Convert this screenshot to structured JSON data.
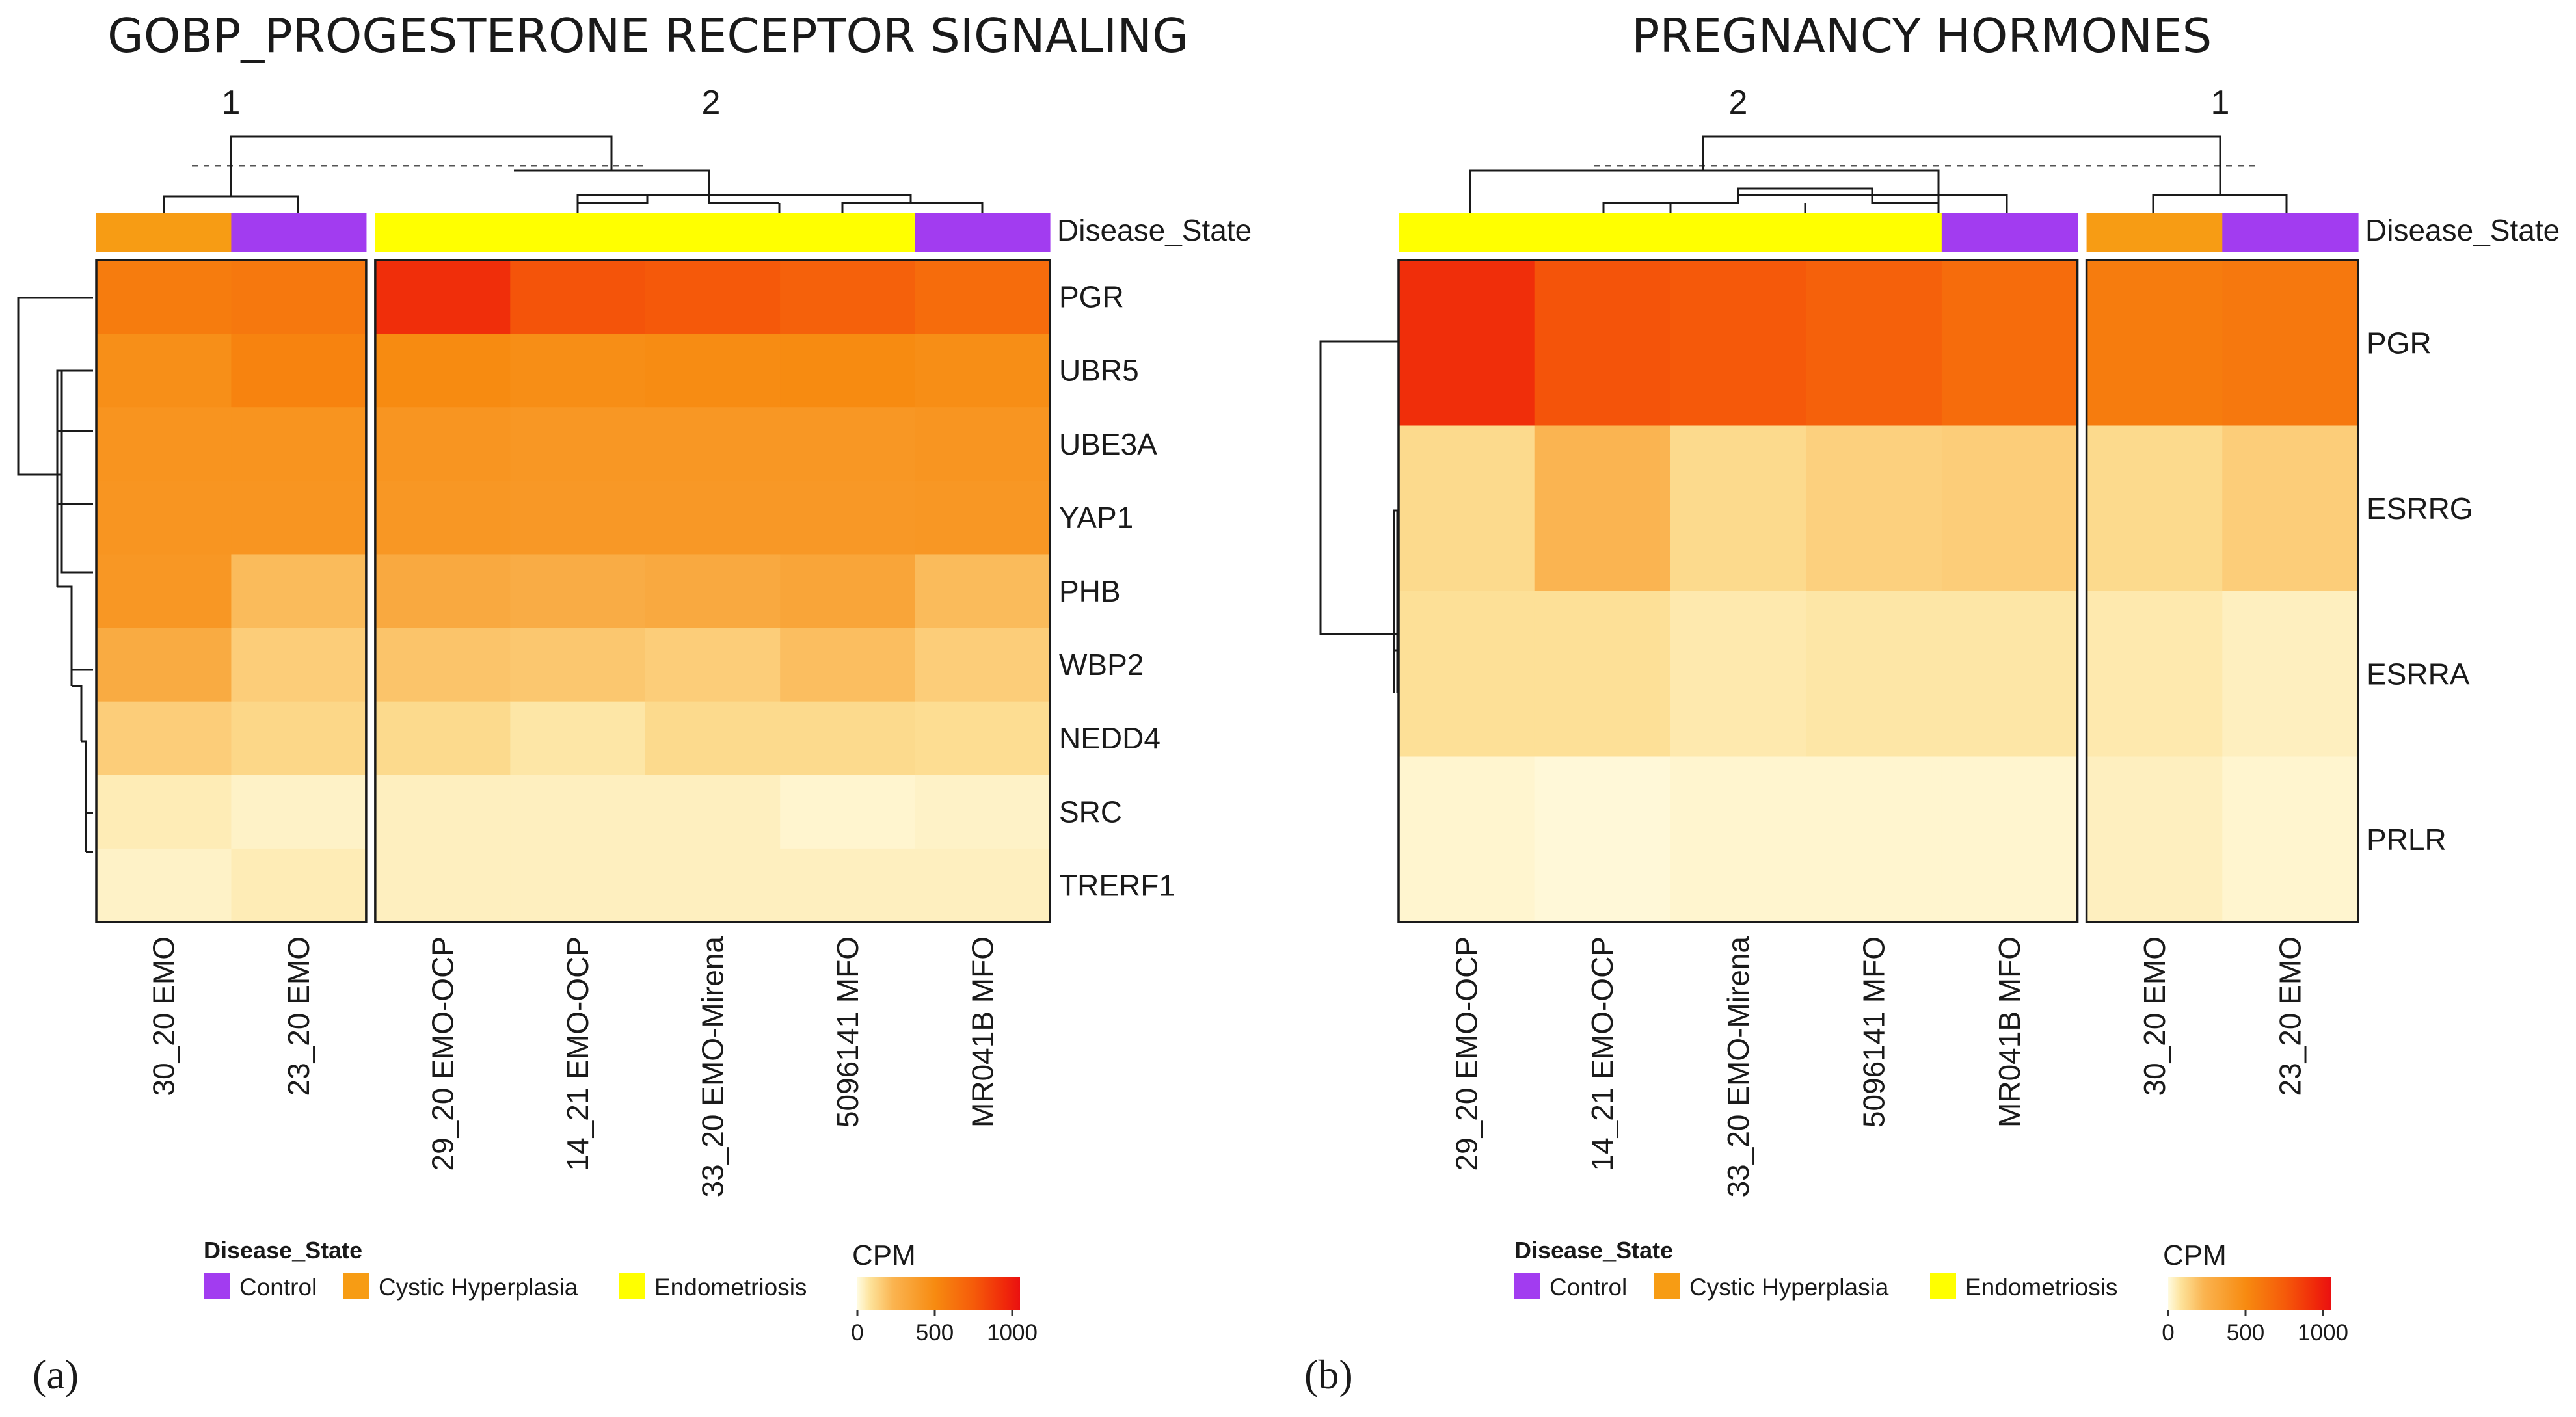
{
  "colors": {
    "Control": "#a23cf0",
    "Cystic Hyperplasia": "#f79c14",
    "Endometriosis": "#ffff00",
    "cpm_scale": [
      "#fffbe0",
      "#fde29a",
      "#fab450",
      "#f78a10",
      "#f55a0a",
      "#f02a0a",
      "#ea1010"
    ]
  },
  "chart_data": [
    {
      "panel_label": "(a)",
      "title": "GOBP_PROGESTERONE RECEPTOR SIGNALING",
      "type": "heatmap",
      "annotation_label": "Disease_State",
      "column_clusters": [
        {
          "label": "1",
          "columns": [
            "30_20 EMO",
            "23_20 EMO"
          ]
        },
        {
          "label": "2",
          "columns": [
            "29_20 EMO-OCP",
            "14_21 EMO-OCP",
            "33_20 EMO-Mirena",
            "5096141 MFO",
            "MR041B MFO"
          ]
        }
      ],
      "columns": [
        "30_20 EMO",
        "23_20 EMO",
        "29_20 EMO-OCP",
        "14_21 EMO-OCP",
        "33_20 EMO-Mirena",
        "5096141 MFO",
        "MR041B MFO"
      ],
      "column_disease_state": [
        "Cystic Hyperplasia",
        "Control",
        "Endometriosis",
        "Endometriosis",
        "Endometriosis",
        "Endometriosis",
        "Control"
      ],
      "rows": [
        "PGR",
        "UBR5",
        "UBE3A",
        "YAP1",
        "PHB",
        "WBP2",
        "NEDD4",
        "SRC",
        "TRERF1"
      ],
      "values": [
        [
          580,
          600,
          930,
          780,
          760,
          720,
          660
        ],
        [
          470,
          540,
          500,
          480,
          490,
          500,
          480
        ],
        [
          440,
          440,
          430,
          420,
          420,
          420,
          430
        ],
        [
          430,
          430,
          420,
          410,
          410,
          410,
          420
        ],
        [
          420,
          210,
          300,
          280,
          300,
          330,
          210
        ],
        [
          290,
          150,
          180,
          170,
          150,
          200,
          150
        ],
        [
          150,
          120,
          110,
          70,
          110,
          110,
          100
        ],
        [
          50,
          30,
          40,
          40,
          40,
          20,
          30
        ],
        [
          30,
          50,
          40,
          40,
          40,
          40,
          40
        ]
      ]
    },
    {
      "panel_label": "(b)",
      "title": "PREGNANCY HORMONES",
      "type": "heatmap",
      "annotation_label": "Disease_State",
      "column_clusters": [
        {
          "label": "2",
          "columns": [
            "29_20 EMO-OCP",
            "14_21 EMO-OCP",
            "33_20 EMO-Mirena",
            "5096141 MFO",
            "MR041B MFO"
          ]
        },
        {
          "label": "1",
          "columns": [
            "30_20 EMO",
            "23_20 EMO"
          ]
        }
      ],
      "columns": [
        "29_20 EMO-OCP",
        "14_21 EMO-OCP",
        "33_20 EMO-Mirena",
        "5096141 MFO",
        "MR041B MFO",
        "30_20 EMO",
        "23_20 EMO"
      ],
      "column_disease_state": [
        "Endometriosis",
        "Endometriosis",
        "Endometriosis",
        "Endometriosis",
        "Control",
        "Cystic Hyperplasia",
        "Control"
      ],
      "rows": [
        "PGR",
        "ESRRG",
        "ESRRA",
        "PRLR"
      ],
      "values": [
        [
          930,
          780,
          760,
          720,
          660,
          580,
          600
        ],
        [
          110,
          230,
          110,
          140,
          150,
          110,
          150
        ],
        [
          90,
          90,
          60,
          70,
          70,
          60,
          40
        ],
        [
          20,
          10,
          20,
          20,
          20,
          40,
          20
        ]
      ]
    }
  ],
  "legend": {
    "title": "Disease_State",
    "items": [
      "Control",
      "Cystic Hyperplasia",
      "Endometriosis"
    ]
  },
  "colorbar": {
    "title": "CPM",
    "range": [
      0,
      1050
    ],
    "ticks": [
      "0",
      "500",
      "1000"
    ]
  }
}
